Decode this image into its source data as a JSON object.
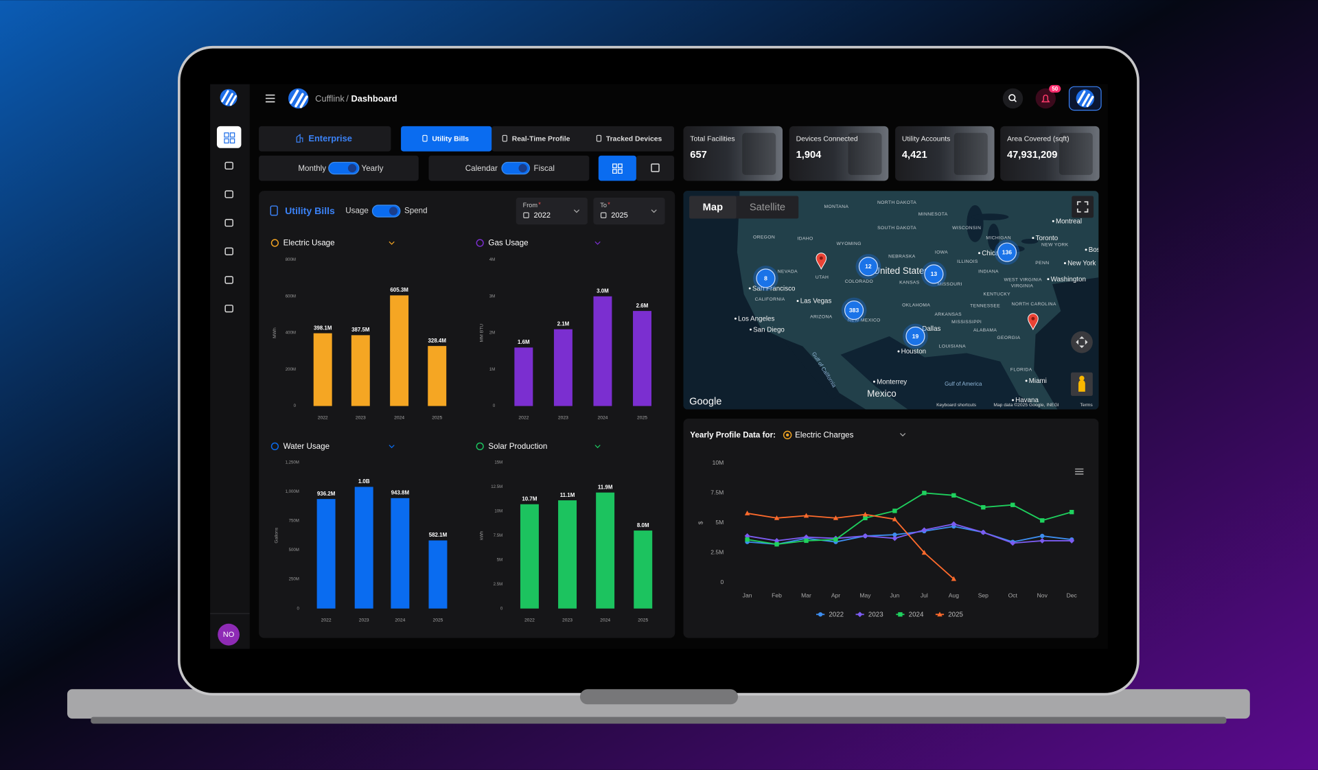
{
  "header": {
    "brand": "Cufflink",
    "separator": "/",
    "page": "Dashboard",
    "notifications": "50",
    "avatar": "NO"
  },
  "tabs": {
    "enterprise": "Enterprise",
    "items": [
      "Utility Bills",
      "Real-Time Profile",
      "Tracked Devices"
    ]
  },
  "toggles": {
    "period": [
      "Monthly",
      "Yearly"
    ],
    "calendar": [
      "Calendar",
      "Fiscal"
    ]
  },
  "kpis": [
    {
      "label": "Total Facilities",
      "value": "657"
    },
    {
      "label": "Devices Connected",
      "value": "1,904"
    },
    {
      "label": "Utility Accounts",
      "value": "4,421"
    },
    {
      "label": "Area Covered (sqft)",
      "value": "47,931,209"
    }
  ],
  "utility_panel": {
    "title": "Utility Bills",
    "toggle": [
      "Usage",
      "Spend"
    ],
    "from": {
      "label": "From",
      "required": "*",
      "value": "2022"
    },
    "to": {
      "label": "To",
      "required": "*",
      "value": "2025"
    }
  },
  "chart_data": [
    {
      "type": "bar",
      "title": "Electric Usage",
      "y_label": "MWh",
      "categories": [
        "2022",
        "2023",
        "2024",
        "2025"
      ],
      "values": [
        398100000,
        387500000,
        605300000,
        328400000
      ],
      "value_labels": [
        "398.1M",
        "387.5M",
        "605.3M",
        "328.4M"
      ],
      "color": "#f5a623",
      "ylim": [
        0,
        800000000
      ],
      "yticks": [
        0,
        {
          "value": 200000000,
          "label": "200M"
        },
        {
          "value": 400000000,
          "label": "400M"
        },
        {
          "value": 600000000,
          "label": "600M"
        },
        {
          "value": 800000000,
          "label": "800M"
        }
      ]
    },
    {
      "type": "bar",
      "title": "Gas Usage",
      "y_label": "MM BTU",
      "categories": [
        "2022",
        "2023",
        "2024",
        "2025"
      ],
      "values": [
        1600000,
        2100000,
        3000000,
        2600000
      ],
      "value_labels": [
        "1.6M",
        "2.1M",
        "3.0M",
        "2.6M"
      ],
      "color": "#7b2fd0",
      "ylim": [
        0,
        4000000
      ],
      "yticks": [
        0,
        {
          "value": 1000000,
          "label": "1M"
        },
        {
          "value": 2000000,
          "label": "2M"
        },
        {
          "value": 3000000,
          "label": "3M"
        },
        {
          "value": 4000000,
          "label": "4M"
        }
      ]
    },
    {
      "type": "bar",
      "title": "Water Usage",
      "y_label": "Gallons",
      "categories": [
        "2022",
        "2023",
        "2024",
        "2025"
      ],
      "values": [
        936200000,
        1040000000,
        943800000,
        582100000
      ],
      "value_labels": [
        "936.2M",
        "1.0B",
        "943.8M",
        "582.1M"
      ],
      "color": "#0a6cf0",
      "ylim": [
        0,
        1250000000
      ],
      "yticks": [
        0,
        {
          "value": 250000000,
          "label": "250M"
        },
        {
          "value": 500000000,
          "label": "500M"
        },
        {
          "value": 750000000,
          "label": "750M"
        },
        {
          "value": 1000000000,
          "label": "1,000M"
        },
        {
          "value": 1250000000,
          "label": "1,250M"
        }
      ]
    },
    {
      "type": "bar",
      "title": "Solar Production",
      "y_label": "kWh",
      "categories": [
        "2022",
        "2023",
        "2024",
        "2025"
      ],
      "values": [
        10700000,
        11100000,
        11900000,
        8000000
      ],
      "value_labels": [
        "10.7M",
        "11.1M",
        "11.9M",
        "8.0M"
      ],
      "color": "#1cc35f",
      "ylim": [
        0,
        15000000
      ],
      "yticks": [
        0,
        {
          "value": 2500000,
          "label": "2.5M"
        },
        {
          "value": 5000000,
          "label": "5M"
        },
        {
          "value": 7500000,
          "label": "7.5M"
        },
        {
          "value": 10000000,
          "label": "10M"
        },
        {
          "value": 12500000,
          "label": "12.5M"
        },
        {
          "value": 15000000,
          "label": "15M"
        }
      ]
    },
    {
      "type": "line",
      "title": "Yearly Profile Data for:",
      "selector": "Electric Charges",
      "y_label": "$",
      "categories": [
        "Jan",
        "Feb",
        "Mar",
        "Apr",
        "May",
        "Jun",
        "Jul",
        "Aug",
        "Sep",
        "Oct",
        "Nov",
        "Dec"
      ],
      "ylim": [
        0,
        10000000
      ],
      "yticks": [
        0,
        {
          "value": 2500000,
          "label": "2.5M"
        },
        {
          "value": 5000000,
          "label": "5M"
        },
        {
          "value": 7500000,
          "label": "7.5M"
        },
        {
          "value": 10000000,
          "label": "10M"
        }
      ],
      "legend": "bottom",
      "series": [
        {
          "name": "2022",
          "color": "#3d8ef0",
          "marker": "circle",
          "values": [
            3400000,
            3200000,
            3700000,
            3400000,
            3900000,
            4000000,
            4300000,
            4700000,
            4200000,
            3400000,
            3900000,
            3600000
          ]
        },
        {
          "name": "2023",
          "color": "#7c5cf2",
          "marker": "diamond",
          "values": [
            3900000,
            3500000,
            3800000,
            3700000,
            3900000,
            3700000,
            4400000,
            4900000,
            4200000,
            3300000,
            3500000,
            3500000
          ]
        },
        {
          "name": "2024",
          "color": "#1fd15e",
          "marker": "square",
          "values": [
            3600000,
            3200000,
            3500000,
            3600000,
            5400000,
            6000000,
            7500000,
            7300000,
            6300000,
            6500000,
            5200000,
            5900000
          ]
        },
        {
          "name": "2025",
          "color": "#ff6b2c",
          "marker": "triangle",
          "values": [
            5800000,
            5400000,
            5600000,
            5400000,
            5700000,
            5300000,
            2500000,
            300000,
            null,
            null,
            null,
            null
          ]
        }
      ]
    }
  ],
  "map": {
    "tabs": [
      "Map",
      "Satellite"
    ],
    "clusters": [
      "8",
      "12",
      "13",
      "136",
      "383",
      "19"
    ],
    "labels": [
      "MONTANA",
      "NORTH DAKOTA",
      "MINNESOTA",
      "SOUTH DAKOTA",
      "WISCONSIN",
      "MICHIGAN",
      "WYOMING",
      "OREGON",
      "IDAHO",
      "NEVADA",
      "UTAH",
      "NEBRASKA",
      "IOWA",
      "ILLINOIS",
      "INDIANA",
      "COLORADO",
      "KANSAS",
      "MISSOURI",
      "CALIFORNIA",
      "ARIZONA",
      "NEW MEXICO",
      "OKLAHOMA",
      "ARKANSAS",
      "TENNESSEE",
      "KENTUCKY",
      "WEST VIRGINIA",
      "VIRGINIA",
      "NORTH CAROLINA",
      "MISSISSIPPI",
      "ALABAMA",
      "GEORGIA",
      "LOUISIANA",
      "FLORIDA",
      "PENN",
      "NEW YORK",
      "United States",
      "Montreal",
      "Toronto",
      "Chicago",
      "Boston",
      "New York",
      "Washington",
      "San Francisco",
      "Las Vegas",
      "Los Angeles",
      "San Diego",
      "Dallas",
      "Houston",
      "Monterrey",
      "Miami",
      "Havana",
      "Mexico",
      "Gulf of America",
      "Gulf of California"
    ],
    "attribution": {
      "logo": "Google",
      "shortcuts": "Keyboard shortcuts",
      "data": "Map data ©2025 Google, INEGI",
      "terms": "Terms"
    }
  }
}
